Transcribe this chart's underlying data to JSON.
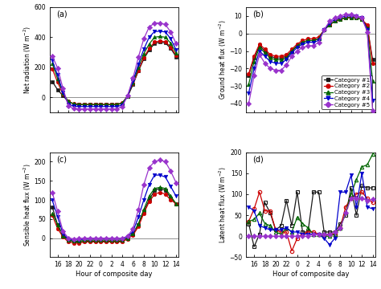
{
  "hours": [
    15,
    16,
    17,
    18,
    19,
    20,
    21,
    22,
    23,
    0,
    1,
    2,
    3,
    4,
    5,
    6,
    7,
    8,
    9,
    10,
    11,
    12,
    13,
    14
  ],
  "colors_main": [
    "#1a1a1a",
    "#cc0000",
    "#006600",
    "#0000cc",
    "#9933cc"
  ],
  "category_labels": [
    "Category #1",
    "Category #2",
    "Category #3",
    "Category #4",
    "Category #5"
  ],
  "panel_labels": [
    "(a)",
    "(b)",
    "(c)",
    "(d)"
  ],
  "xlabel": "Hour of composite day",
  "ylabel_a": "Net radiation (W m$^{-2}$)",
  "ylabel_b": "Ground heat flux (W m$^{-2}$)",
  "ylabel_c": "Sensible heat flux (W m$^{-2}$)",
  "ylabel_d": "Latent heat flux (W m$^{-2}$)",
  "net_radiation": {
    "cat1": [
      105,
      50,
      10,
      -30,
      -45,
      -50,
      -50,
      -50,
      -50,
      -50,
      -50,
      -50,
      -50,
      -40,
      5,
      85,
      175,
      255,
      315,
      358,
      368,
      362,
      325,
      270
    ],
    "cat2": [
      190,
      100,
      20,
      -28,
      -44,
      -48,
      -48,
      -48,
      -48,
      -48,
      -48,
      -48,
      -48,
      -38,
      8,
      90,
      180,
      265,
      325,
      368,
      375,
      370,
      335,
      280
    ],
    "cat3": [
      225,
      125,
      28,
      -28,
      -44,
      -48,
      -48,
      -48,
      -48,
      -48,
      -48,
      -48,
      -48,
      -38,
      8,
      95,
      200,
      290,
      355,
      400,
      405,
      400,
      360,
      295
    ],
    "cat4": [
      245,
      148,
      32,
      -45,
      -60,
      -62,
      -62,
      -62,
      -62,
      -62,
      -62,
      -62,
      -62,
      -52,
      8,
      108,
      220,
      320,
      400,
      438,
      440,
      435,
      390,
      315
    ],
    "cat5": [
      275,
      195,
      58,
      -58,
      -75,
      -78,
      -78,
      -78,
      -78,
      -78,
      -78,
      -78,
      -78,
      -62,
      12,
      128,
      268,
      390,
      468,
      495,
      495,
      485,
      435,
      358
    ]
  },
  "ground_heat": {
    "cat1": [
      -24,
      -14,
      -7,
      -10,
      -13,
      -14,
      -14,
      -13,
      -10,
      -7,
      -5,
      -4,
      -4,
      -3,
      2,
      5,
      7,
      8,
      9,
      9,
      9,
      8,
      4,
      -15
    ],
    "cat2": [
      -23,
      -13,
      -6,
      -9,
      -12,
      -13,
      -13,
      -12,
      -9,
      -6,
      -4,
      -3,
      -3,
      -2,
      2,
      5,
      7,
      8,
      9,
      9,
      9,
      8,
      5,
      -17
    ],
    "cat3": [
      -29,
      -16,
      -8,
      -11,
      -14,
      -15,
      -15,
      -14,
      -10,
      -7,
      -5,
      -4,
      -4,
      -3,
      2,
      5,
      7,
      8,
      9,
      9,
      9,
      8,
      3,
      -27
    ],
    "cat4": [
      -34,
      -20,
      -10,
      -13,
      -16,
      -17,
      -17,
      -15,
      -11,
      -8,
      -6,
      -5,
      -5,
      -4,
      2,
      6,
      8,
      9,
      10,
      10,
      10,
      9,
      2,
      -38
    ],
    "cat5": [
      -40,
      -24,
      -12,
      -17,
      -20,
      -21,
      -21,
      -18,
      -13,
      -10,
      -8,
      -7,
      -7,
      -5,
      2,
      7,
      9,
      10,
      11,
      11,
      10,
      9,
      1,
      -44
    ]
  },
  "sensible_heat": {
    "cat1": [
      82,
      35,
      8,
      -5,
      -10,
      -10,
      -8,
      -8,
      -8,
      -8,
      -8,
      -8,
      -8,
      -8,
      0,
      10,
      35,
      70,
      100,
      125,
      130,
      125,
      105,
      90
    ],
    "cat2": [
      60,
      25,
      3,
      -10,
      -13,
      -13,
      -10,
      -10,
      -10,
      -10,
      -10,
      -10,
      -10,
      -10,
      -2,
      8,
      30,
      65,
      95,
      115,
      120,
      115,
      100,
      90
    ],
    "cat3": [
      65,
      35,
      5,
      -5,
      -8,
      -8,
      -6,
      -5,
      -5,
      -5,
      -5,
      -5,
      -5,
      -5,
      0,
      12,
      38,
      75,
      110,
      130,
      133,
      130,
      110,
      90
    ],
    "cat4": [
      100,
      55,
      12,
      -3,
      -5,
      -4,
      -3,
      -2,
      -2,
      -2,
      -2,
      -2,
      -2,
      -2,
      3,
      18,
      55,
      100,
      140,
      165,
      165,
      160,
      135,
      110
    ],
    "cat5": [
      120,
      70,
      18,
      0,
      -2,
      -1,
      0,
      0,
      0,
      0,
      0,
      0,
      0,
      0,
      5,
      25,
      75,
      140,
      185,
      200,
      205,
      200,
      175,
      145
    ]
  },
  "latent_heat": {
    "cat1": [
      30,
      -25,
      5,
      80,
      55,
      15,
      25,
      85,
      25,
      105,
      10,
      10,
      105,
      105,
      10,
      10,
      10,
      30,
      50,
      115,
      50,
      120,
      115,
      115
    ],
    "cat2": [
      35,
      65,
      105,
      60,
      60,
      15,
      10,
      10,
      -35,
      -5,
      5,
      10,
      10,
      5,
      0,
      5,
      5,
      20,
      70,
      90,
      100,
      105,
      90,
      80
    ],
    "cat3": [
      35,
      40,
      55,
      30,
      25,
      10,
      5,
      20,
      10,
      45,
      30,
      20,
      5,
      5,
      0,
      0,
      5,
      20,
      55,
      100,
      135,
      165,
      170,
      195
    ],
    "cat4": [
      70,
      60,
      25,
      20,
      15,
      15,
      15,
      20,
      10,
      10,
      5,
      5,
      5,
      5,
      -5,
      -20,
      -5,
      105,
      105,
      145,
      70,
      150,
      70,
      65
    ],
    "cat5": [
      0,
      0,
      0,
      0,
      0,
      0,
      0,
      0,
      0,
      0,
      0,
      0,
      5,
      5,
      5,
      5,
      10,
      20,
      55,
      90,
      90,
      90,
      85,
      88
    ]
  },
  "ylim_a": [
    -100,
    600
  ],
  "ylim_b": [
    -45,
    15
  ],
  "ylim_c": [
    -50,
    225
  ],
  "ylim_d": [
    -50,
    200
  ],
  "yticks_a": [
    0,
    200,
    400,
    600
  ],
  "yticks_b": [
    -40,
    -30,
    -20,
    -10,
    0,
    10
  ],
  "yticks_c": [
    0,
    50,
    100,
    150,
    200
  ],
  "yticks_d": [
    -50,
    0,
    50,
    100,
    150,
    200
  ],
  "xticks": [
    16,
    18,
    20,
    22,
    0,
    2,
    4,
    6,
    8,
    10,
    12,
    14
  ]
}
